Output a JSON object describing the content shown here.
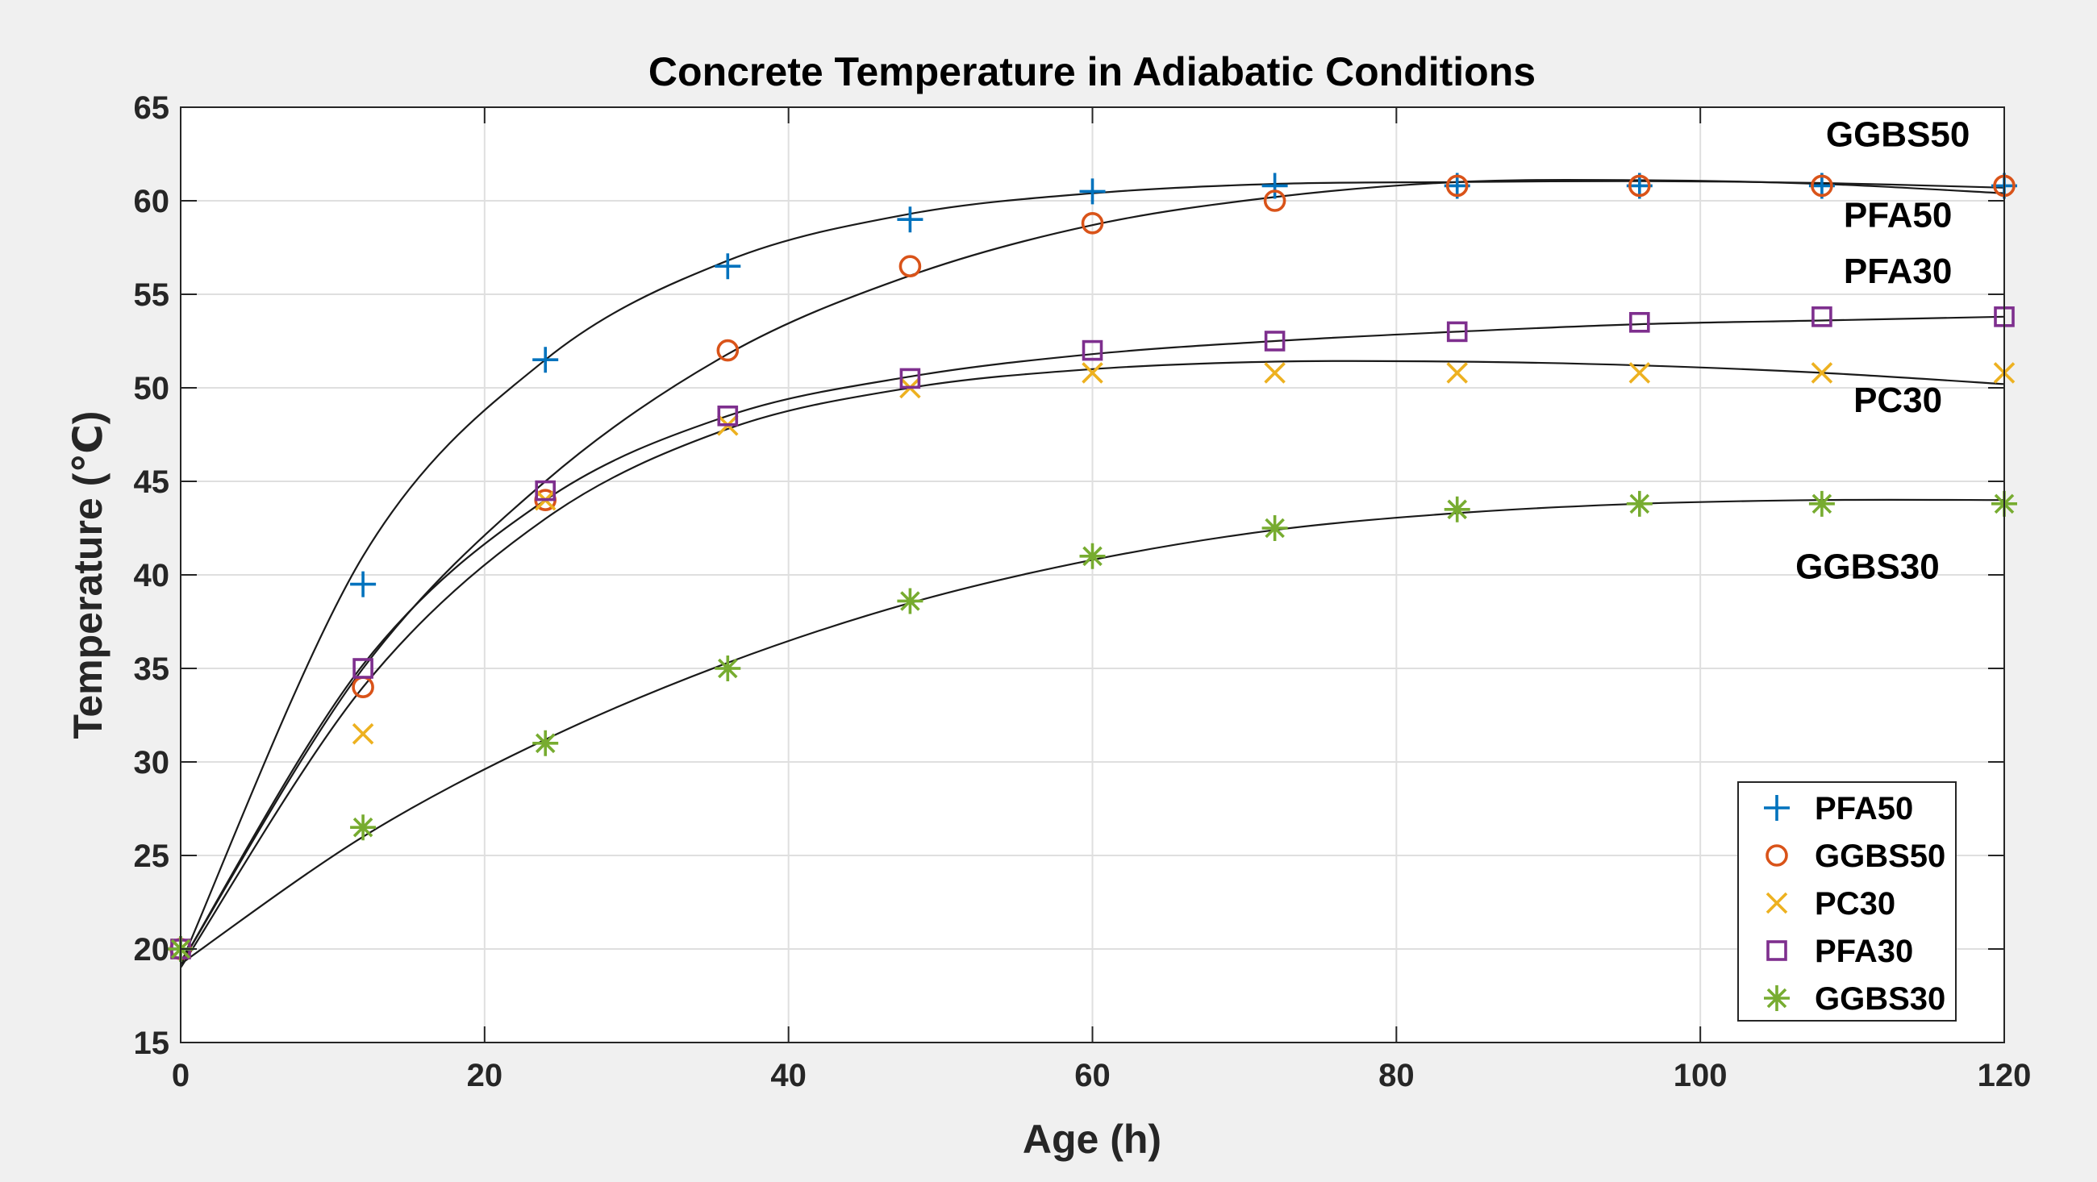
{
  "chart_data": {
    "type": "scatter",
    "title": "Concrete Temperature in Adiabatic Conditions",
    "xlabel": "Age (h)",
    "ylabel": "Temperature (℃)",
    "xlim": [
      0,
      120
    ],
    "ylim": [
      15,
      65
    ],
    "xticks": [
      0,
      20,
      40,
      60,
      80,
      100,
      120
    ],
    "yticks": [
      15,
      20,
      25,
      30,
      35,
      40,
      45,
      50,
      55,
      60,
      65
    ],
    "grid": true,
    "legend_position": "bottom-right",
    "series": [
      {
        "name": "PFA50",
        "marker": "plus",
        "color": "#0072bd",
        "x": [
          0,
          12,
          24,
          36,
          48,
          60,
          72,
          84,
          96,
          108,
          120
        ],
        "y": [
          20,
          39.5,
          51.5,
          56.5,
          59,
          60.5,
          60.8,
          60.8,
          60.8,
          60.8,
          60.8
        ],
        "fit": [
          [
            0,
            19.2
          ],
          [
            12,
            41
          ],
          [
            24,
            51.5
          ],
          [
            36,
            56.8
          ],
          [
            48,
            59.3
          ],
          [
            60,
            60.4
          ],
          [
            72,
            60.9
          ],
          [
            84,
            61
          ],
          [
            96,
            61.05
          ],
          [
            108,
            60.95
          ],
          [
            120,
            60.7
          ]
        ]
      },
      {
        "name": "GGBS50",
        "marker": "circle",
        "color": "#d95319",
        "x": [
          0,
          12,
          24,
          36,
          48,
          60,
          72,
          84,
          96,
          108,
          120
        ],
        "y": [
          20,
          34,
          44,
          52,
          56.5,
          58.8,
          60,
          60.8,
          60.8,
          60.8,
          60.8
        ],
        "fit": [
          [
            0,
            19.2
          ],
          [
            12,
            35
          ],
          [
            24,
            45
          ],
          [
            36,
            51.8
          ],
          [
            48,
            56
          ],
          [
            60,
            58.7
          ],
          [
            72,
            60.2
          ],
          [
            84,
            61
          ],
          [
            96,
            61.1
          ],
          [
            108,
            60.9
          ],
          [
            120,
            60.4
          ]
        ]
      },
      {
        "name": "PC30",
        "marker": "cross",
        "color": "#edb120",
        "x": [
          0,
          12,
          24,
          36,
          48,
          60,
          72,
          84,
          96,
          108,
          120
        ],
        "y": [
          20,
          31.5,
          44,
          48,
          50,
          50.8,
          50.8,
          50.8,
          50.8,
          50.8,
          50.8
        ],
        "fit": [
          [
            0,
            19
          ],
          [
            12,
            34
          ],
          [
            24,
            43
          ],
          [
            36,
            47.8
          ],
          [
            48,
            50
          ],
          [
            60,
            51
          ],
          [
            72,
            51.4
          ],
          [
            84,
            51.4
          ],
          [
            96,
            51.2
          ],
          [
            108,
            50.8
          ],
          [
            120,
            50.2
          ]
        ]
      },
      {
        "name": "PFA30",
        "marker": "square",
        "color": "#7e2f8e",
        "x": [
          0,
          12,
          24,
          36,
          48,
          60,
          72,
          84,
          96,
          108,
          120
        ],
        "y": [
          20,
          35,
          44.5,
          48.5,
          50.5,
          52,
          52.5,
          53,
          53.5,
          53.8,
          53.8
        ],
        "fit": [
          [
            0,
            19.2
          ],
          [
            12,
            35.2
          ],
          [
            24,
            44
          ],
          [
            36,
            48.5
          ],
          [
            48,
            50.6
          ],
          [
            60,
            51.8
          ],
          [
            72,
            52.5
          ],
          [
            84,
            53
          ],
          [
            96,
            53.4
          ],
          [
            108,
            53.6
          ],
          [
            120,
            53.8
          ]
        ]
      },
      {
        "name": "GGBS30",
        "marker": "asterisk",
        "color": "#77ac30",
        "x": [
          0,
          12,
          24,
          36,
          48,
          60,
          72,
          84,
          96,
          108,
          120
        ],
        "y": [
          20,
          26.5,
          31,
          35,
          38.6,
          41,
          42.5,
          43.5,
          43.8,
          43.8,
          43.8
        ],
        "fit": [
          [
            0,
            19.2
          ],
          [
            12,
            26
          ],
          [
            24,
            31.2
          ],
          [
            36,
            35.3
          ],
          [
            48,
            38.5
          ],
          [
            60,
            40.8
          ],
          [
            72,
            42.4
          ],
          [
            84,
            43.3
          ],
          [
            96,
            43.8
          ],
          [
            108,
            44
          ],
          [
            120,
            44
          ]
        ]
      }
    ],
    "annotations": [
      {
        "text": "GGBS50",
        "x": 113,
        "y": 62.9
      },
      {
        "text": "PFA50",
        "x": 113,
        "y": 58.6
      },
      {
        "text": "PFA30",
        "x": 113,
        "y": 55.6
      },
      {
        "text": "PC30",
        "x": 113,
        "y": 48.7
      },
      {
        "text": "GGBS30",
        "x": 111,
        "y": 39.8
      }
    ]
  }
}
